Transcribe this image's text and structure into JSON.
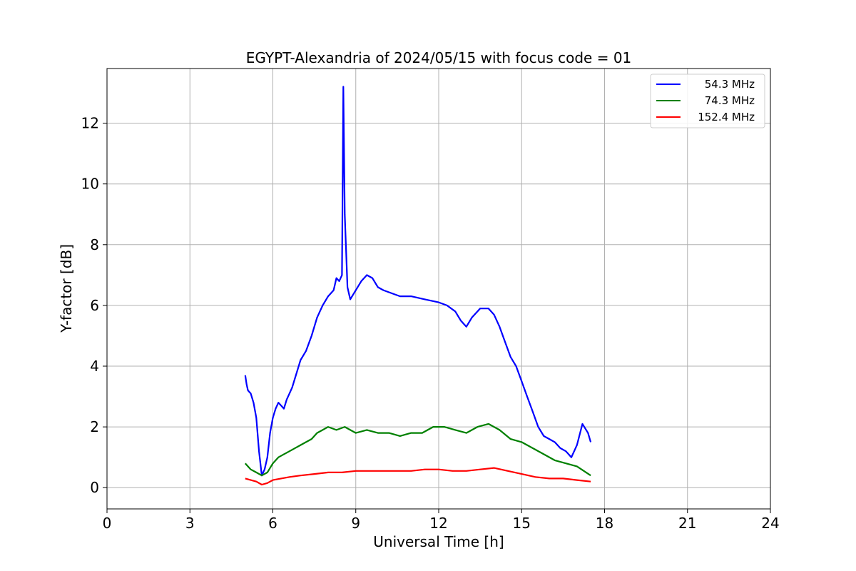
{
  "chart_data": {
    "type": "line",
    "title": "EGYPT-Alexandria of 2024/05/15 with focus code = 01",
    "xlabel": "Universal Time [h]",
    "ylabel": "Y-factor [dB]",
    "xlim": [
      0,
      24
    ],
    "ylim": [
      -0.7,
      13.8
    ],
    "xticks": [
      0,
      3,
      6,
      9,
      12,
      15,
      18,
      21,
      24
    ],
    "yticks": [
      0,
      2,
      4,
      6,
      8,
      10,
      12
    ],
    "grid": true,
    "legend_position": "top-right",
    "series": [
      {
        "name": "54.3 MHz",
        "color": "#0000ff",
        "x": [
          5.0,
          5.05,
          5.1,
          5.2,
          5.3,
          5.4,
          5.5,
          5.6,
          5.7,
          5.8,
          5.9,
          6.0,
          6.1,
          6.2,
          6.3,
          6.4,
          6.5,
          6.6,
          6.7,
          6.8,
          6.9,
          7.0,
          7.2,
          7.4,
          7.6,
          7.8,
          8.0,
          8.2,
          8.3,
          8.4,
          8.5,
          8.55,
          8.6,
          8.7,
          8.8,
          9.0,
          9.2,
          9.4,
          9.6,
          9.8,
          10.0,
          10.3,
          10.6,
          11.0,
          11.5,
          12.0,
          12.3,
          12.6,
          12.8,
          13.0,
          13.2,
          13.5,
          13.8,
          14.0,
          14.2,
          14.4,
          14.6,
          14.8,
          15.0,
          15.2,
          15.4,
          15.6,
          15.8,
          16.0,
          16.2,
          16.4,
          16.6,
          16.8,
          17.0,
          17.2,
          17.4,
          17.5
        ],
        "y": [
          3.7,
          3.4,
          3.2,
          3.1,
          2.8,
          2.3,
          1.2,
          0.4,
          0.6,
          1.0,
          1.8,
          2.3,
          2.6,
          2.8,
          2.7,
          2.6,
          2.9,
          3.1,
          3.3,
          3.6,
          3.9,
          4.2,
          4.5,
          5.0,
          5.6,
          6.0,
          6.3,
          6.5,
          6.9,
          6.8,
          7.0,
          13.2,
          9.0,
          6.6,
          6.2,
          6.5,
          6.8,
          7.0,
          6.9,
          6.6,
          6.5,
          6.4,
          6.3,
          6.3,
          6.2,
          6.1,
          6.0,
          5.8,
          5.5,
          5.3,
          5.6,
          5.9,
          5.9,
          5.7,
          5.3,
          4.8,
          4.3,
          4.0,
          3.5,
          3.0,
          2.5,
          2.0,
          1.7,
          1.6,
          1.5,
          1.3,
          1.2,
          1.0,
          1.4,
          2.1,
          1.8,
          1.5
        ]
      },
      {
        "name": "74.3 MHz",
        "color": "#008000",
        "x": [
          5.0,
          5.2,
          5.4,
          5.6,
          5.8,
          6.0,
          6.2,
          6.4,
          6.6,
          6.8,
          7.0,
          7.2,
          7.4,
          7.6,
          7.8,
          8.0,
          8.3,
          8.6,
          9.0,
          9.4,
          9.8,
          10.2,
          10.6,
          11.0,
          11.4,
          11.8,
          12.2,
          12.6,
          13.0,
          13.4,
          13.8,
          14.2,
          14.6,
          15.0,
          15.4,
          15.8,
          16.2,
          16.6,
          17.0,
          17.5
        ],
        "y": [
          0.8,
          0.6,
          0.5,
          0.4,
          0.5,
          0.8,
          1.0,
          1.1,
          1.2,
          1.3,
          1.4,
          1.5,
          1.6,
          1.8,
          1.9,
          2.0,
          1.9,
          2.0,
          1.8,
          1.9,
          1.8,
          1.8,
          1.7,
          1.8,
          1.8,
          2.0,
          2.0,
          1.9,
          1.8,
          2.0,
          2.1,
          1.9,
          1.6,
          1.5,
          1.3,
          1.1,
          0.9,
          0.8,
          0.7,
          0.4
        ]
      },
      {
        "name": "152.4 MHz",
        "color": "#ff0000",
        "x": [
          5.0,
          5.2,
          5.4,
          5.6,
          5.8,
          6.0,
          6.3,
          6.6,
          7.0,
          7.5,
          8.0,
          8.5,
          9.0,
          9.5,
          10.0,
          10.5,
          11.0,
          11.5,
          12.0,
          12.5,
          13.0,
          13.5,
          14.0,
          14.5,
          15.0,
          15.5,
          16.0,
          16.5,
          17.0,
          17.5
        ],
        "y": [
          0.3,
          0.25,
          0.2,
          0.1,
          0.15,
          0.25,
          0.3,
          0.35,
          0.4,
          0.45,
          0.5,
          0.5,
          0.55,
          0.55,
          0.55,
          0.55,
          0.55,
          0.6,
          0.6,
          0.55,
          0.55,
          0.6,
          0.65,
          0.55,
          0.45,
          0.35,
          0.3,
          0.3,
          0.25,
          0.2
        ]
      }
    ]
  }
}
